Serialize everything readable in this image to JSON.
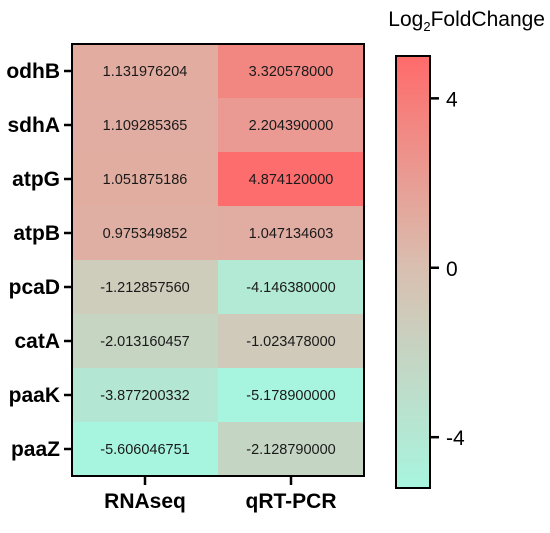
{
  "chart_data": {
    "type": "heatmap",
    "rows": [
      "odhB",
      "sdhA",
      "atpG",
      "atpB",
      "pcaD",
      "catA",
      "paaK",
      "paaZ"
    ],
    "columns": [
      "RNAseq",
      "qRT-PCR"
    ],
    "values": [
      [
        1.131976204,
        3.320578
      ],
      [
        1.109285365,
        2.20439
      ],
      [
        1.051875186,
        4.87412
      ],
      [
        0.975349852,
        1.047134603
      ],
      [
        -1.21285756,
        -4.14638
      ],
      [
        -2.013160457,
        -1.023478
      ],
      [
        -3.877200332,
        -5.1789
      ],
      [
        -5.606046751,
        -2.12879
      ]
    ],
    "value_labels": [
      [
        "1.131976204",
        "3.320578000"
      ],
      [
        "1.109285365",
        "2.204390000"
      ],
      [
        "1.051875186",
        "4.874120000"
      ],
      [
        "0.975349852",
        "1.047134603"
      ],
      [
        "-1.212857560",
        "-4.146380000"
      ],
      [
        "-2.013160457",
        "-1.023478000"
      ],
      [
        "-3.877200332",
        "-5.178900000"
      ],
      [
        "-5.606046751",
        "-2.128790000"
      ]
    ],
    "colorbar": {
      "title_prefix": "Log",
      "title_subscript": "2",
      "title_suffix": "FoldChange",
      "range": [
        -5.2,
        5.0
      ],
      "ticks": [
        4,
        0,
        -4
      ],
      "tick_labels": [
        "4",
        "0",
        "-4"
      ],
      "colors": {
        "high": "#FF6B6B",
        "mid": "#D9BFB0",
        "low": "#A8F5DF"
      }
    }
  }
}
